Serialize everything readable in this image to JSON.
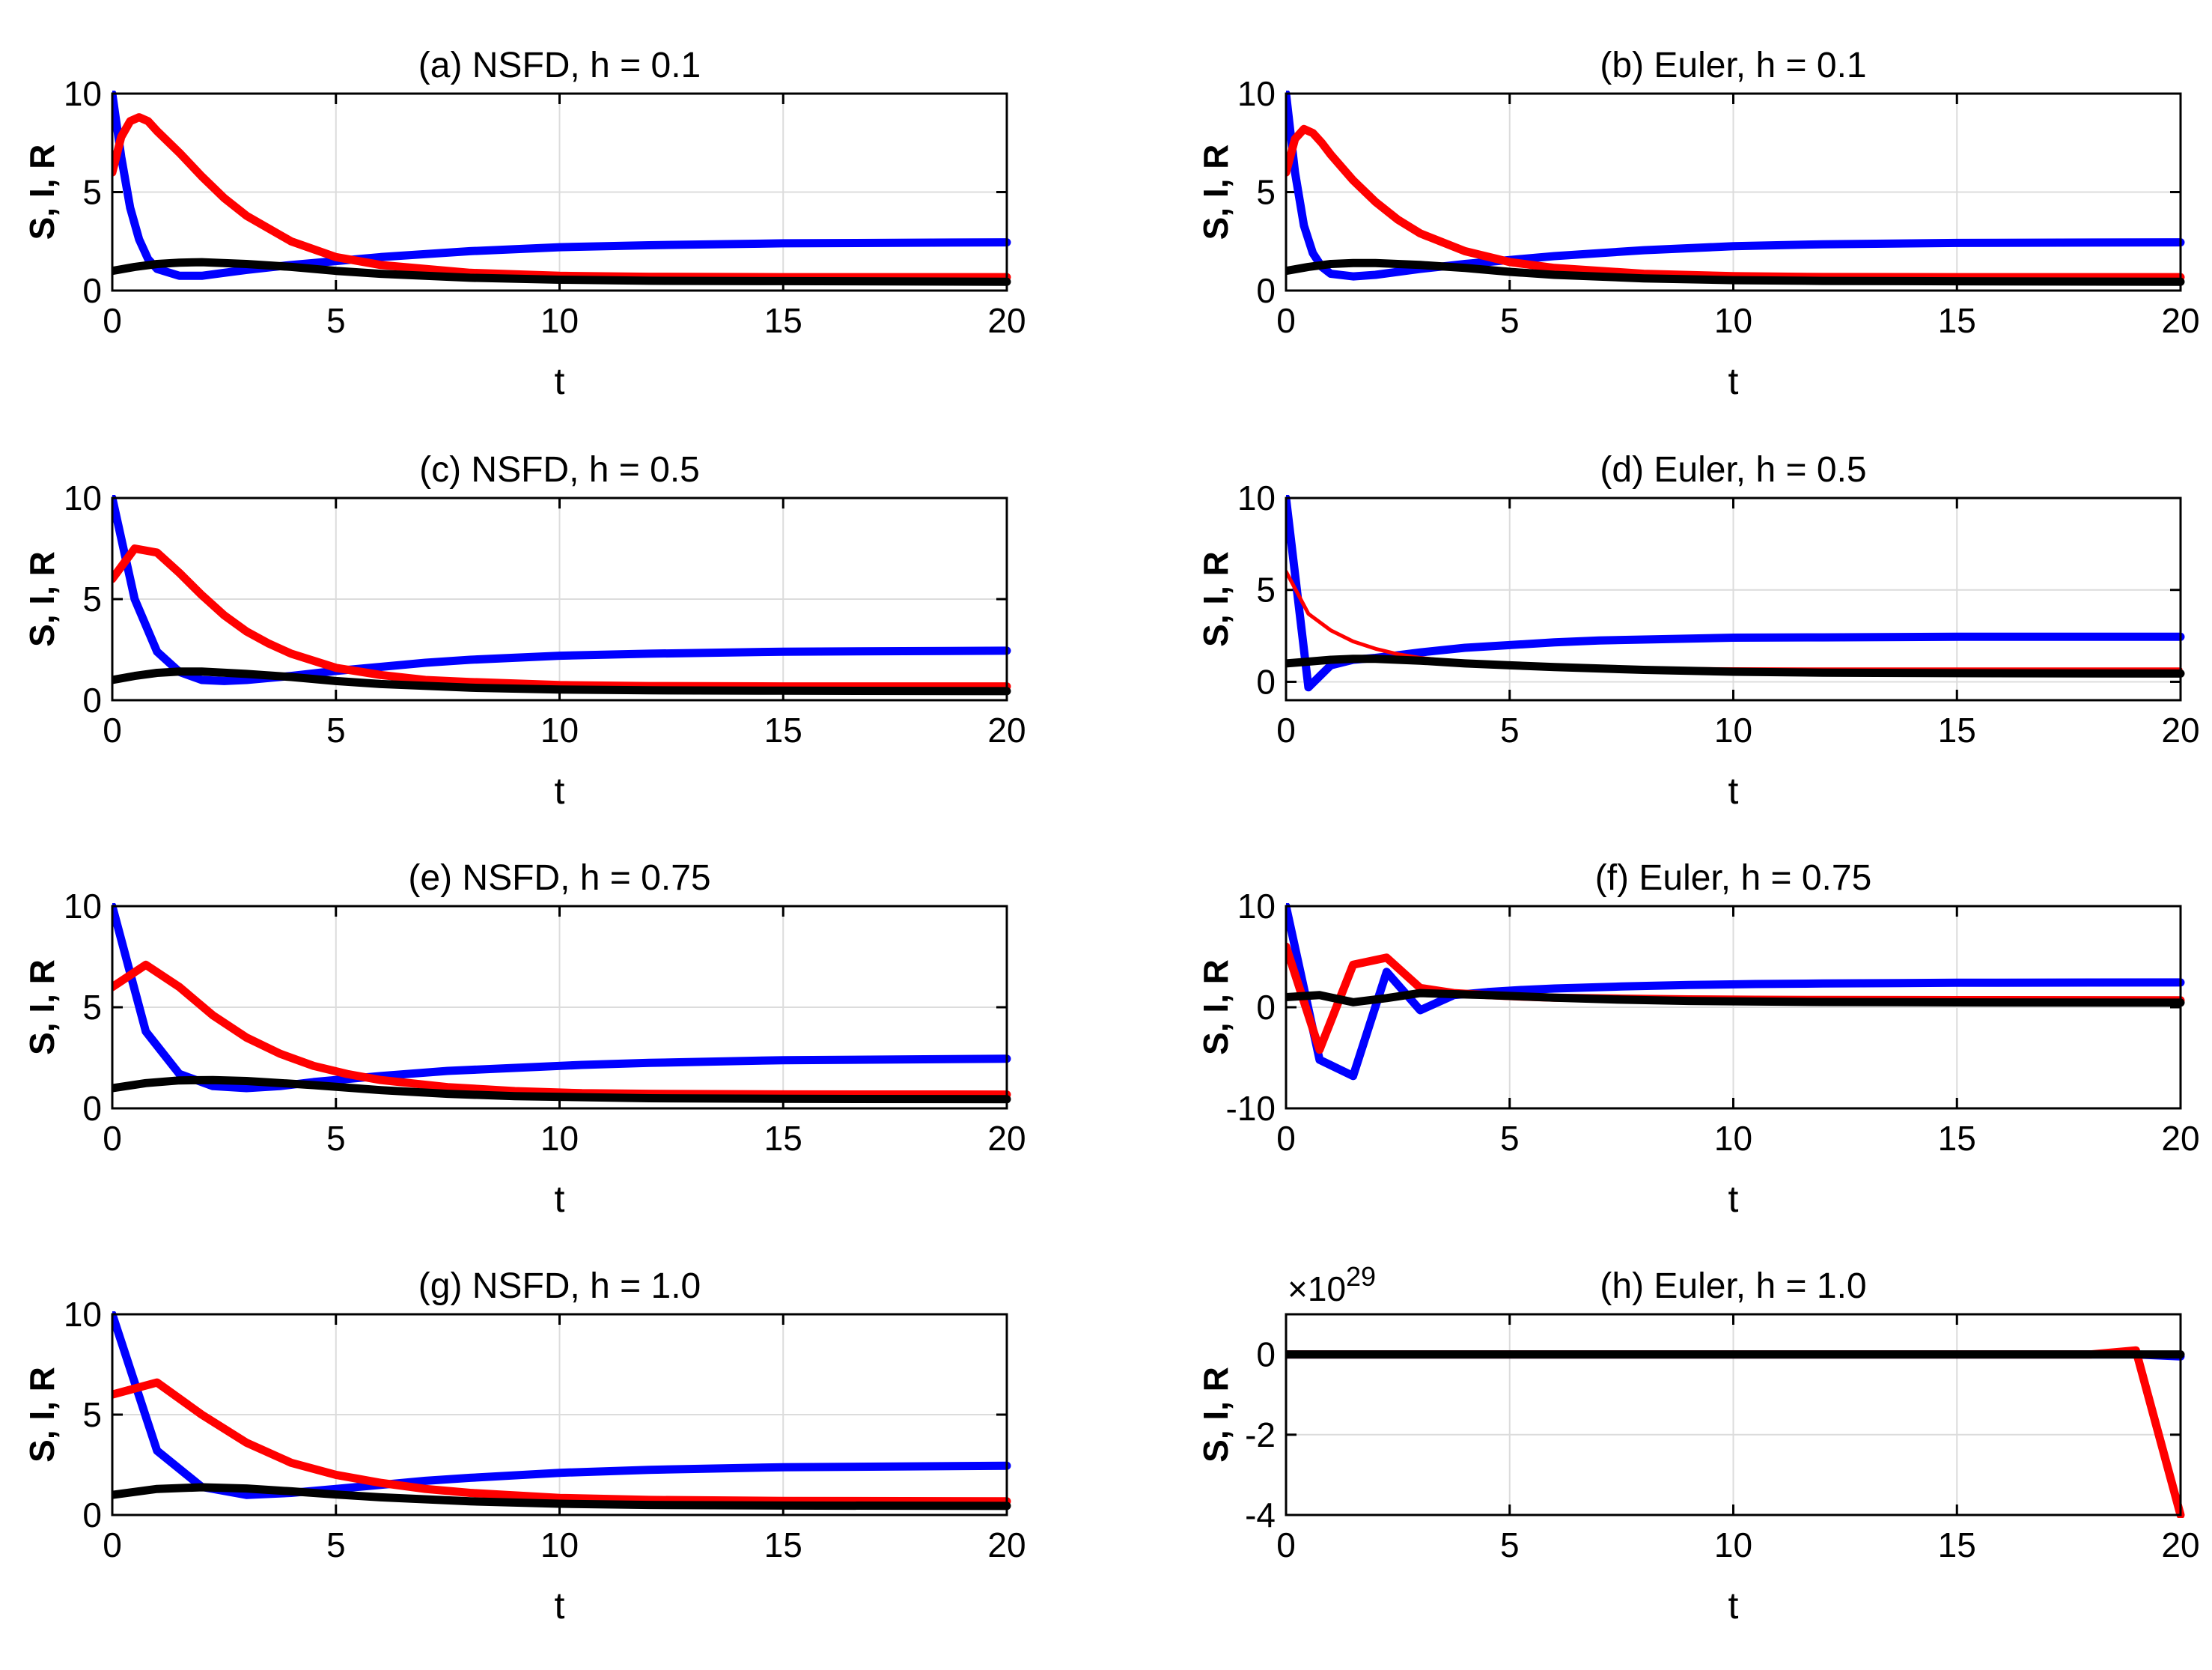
{
  "colors": {
    "S": "#0000ff",
    "I": "#ff0000",
    "R": "#000000"
  },
  "chart_data": [
    {
      "type": "line",
      "title": "(a) NSFD, h = 0.1",
      "xlabel": "t",
      "ylabel": "S, I, R",
      "xlim": [
        0,
        20
      ],
      "ylim": [
        0,
        10
      ],
      "xticks": [
        "0",
        "5",
        "10",
        "15",
        "20"
      ],
      "yticks": [
        "0",
        "5",
        "10"
      ],
      "ytick_values": [
        0,
        5,
        10
      ],
      "exponent": "",
      "series": [
        {
          "name": "S",
          "color": "#0000ff",
          "x": [
            0,
            0.2,
            0.4,
            0.6,
            0.8,
            1,
            1.5,
            2,
            2.5,
            3,
            4,
            5,
            6,
            8,
            10,
            12,
            15,
            20
          ],
          "y": [
            10,
            6.8,
            4.2,
            2.6,
            1.6,
            1.1,
            0.75,
            0.75,
            0.9,
            1.05,
            1.3,
            1.5,
            1.7,
            2.0,
            2.2,
            2.3,
            2.4,
            2.45
          ]
        },
        {
          "name": "I",
          "color": "#ff0000",
          "x": [
            0,
            0.2,
            0.4,
            0.6,
            0.8,
            1,
            1.5,
            2,
            2.5,
            3,
            4,
            5,
            6,
            8,
            10,
            12,
            15,
            20
          ],
          "y": [
            6,
            7.8,
            8.6,
            8.8,
            8.6,
            8.1,
            7.0,
            5.8,
            4.7,
            3.8,
            2.5,
            1.7,
            1.3,
            0.9,
            0.75,
            0.7,
            0.68,
            0.68
          ]
        },
        {
          "name": "R",
          "color": "#000000",
          "x": [
            0,
            0.5,
            1,
            1.5,
            2,
            3,
            4,
            5,
            6,
            8,
            10,
            12,
            15,
            20
          ],
          "y": [
            1,
            1.2,
            1.35,
            1.42,
            1.44,
            1.35,
            1.2,
            1.0,
            0.85,
            0.65,
            0.55,
            0.5,
            0.48,
            0.45
          ]
        }
      ]
    },
    {
      "type": "line",
      "title": "(b) Euler, h = 0.1",
      "xlabel": "t",
      "ylabel": "S, I, R",
      "xlim": [
        0,
        20
      ],
      "ylim": [
        0,
        10
      ],
      "xticks": [
        "0",
        "5",
        "10",
        "15",
        "20"
      ],
      "yticks": [
        "0",
        "5",
        "10"
      ],
      "ytick_values": [
        0,
        5,
        10
      ],
      "exponent": "",
      "series": [
        {
          "name": "S",
          "color": "#0000ff",
          "x": [
            0,
            0.2,
            0.4,
            0.6,
            0.8,
            1,
            1.5,
            2,
            2.5,
            3,
            4,
            5,
            6,
            8,
            10,
            12,
            15,
            20
          ],
          "y": [
            10,
            6.0,
            3.3,
            1.9,
            1.2,
            0.85,
            0.72,
            0.8,
            0.95,
            1.1,
            1.35,
            1.55,
            1.75,
            2.05,
            2.25,
            2.35,
            2.42,
            2.45
          ]
        },
        {
          "name": "I",
          "color": "#ff0000",
          "x": [
            0,
            0.2,
            0.4,
            0.6,
            0.8,
            1,
            1.5,
            2,
            2.5,
            3,
            4,
            5,
            6,
            8,
            10,
            12,
            15,
            20
          ],
          "y": [
            6,
            7.7,
            8.2,
            8.0,
            7.5,
            6.9,
            5.6,
            4.5,
            3.6,
            2.9,
            2.0,
            1.45,
            1.15,
            0.85,
            0.73,
            0.69,
            0.68,
            0.68
          ]
        },
        {
          "name": "R",
          "color": "#000000",
          "x": [
            0,
            0.5,
            1,
            1.5,
            2,
            3,
            4,
            5,
            6,
            8,
            10,
            12,
            15,
            20
          ],
          "y": [
            1,
            1.2,
            1.35,
            1.4,
            1.4,
            1.3,
            1.15,
            0.95,
            0.8,
            0.62,
            0.53,
            0.49,
            0.47,
            0.45
          ]
        }
      ]
    },
    {
      "type": "line",
      "title": "(c) NSFD, h = 0.5",
      "xlabel": "t",
      "ylabel": "S, I, R",
      "xlim": [
        0,
        20
      ],
      "ylim": [
        0,
        10
      ],
      "xticks": [
        "0",
        "5",
        "10",
        "15",
        "20"
      ],
      "yticks": [
        "0",
        "5",
        "10"
      ],
      "ytick_values": [
        0,
        5,
        10
      ],
      "exponent": "",
      "series": [
        {
          "name": "S",
          "color": "#0000ff",
          "x": [
            0,
            0.5,
            1,
            1.5,
            2,
            2.5,
            3,
            4,
            5,
            6,
            7,
            8,
            10,
            12,
            15,
            20
          ],
          "y": [
            10,
            5.0,
            2.4,
            1.4,
            1.0,
            0.95,
            1.0,
            1.2,
            1.45,
            1.65,
            1.85,
            2.0,
            2.2,
            2.3,
            2.4,
            2.45
          ]
        },
        {
          "name": "I",
          "color": "#ff0000",
          "x": [
            0,
            0.5,
            1,
            1.5,
            2,
            2.5,
            3,
            3.5,
            4,
            5,
            6,
            7,
            8,
            10,
            12,
            15,
            20
          ],
          "y": [
            6,
            7.5,
            7.3,
            6.3,
            5.2,
            4.2,
            3.4,
            2.8,
            2.3,
            1.6,
            1.25,
            1.0,
            0.9,
            0.75,
            0.7,
            0.68,
            0.68
          ]
        },
        {
          "name": "R",
          "color": "#000000",
          "x": [
            0,
            0.5,
            1,
            1.5,
            2,
            3,
            4,
            5,
            6,
            8,
            10,
            12,
            15,
            20
          ],
          "y": [
            1,
            1.2,
            1.35,
            1.42,
            1.42,
            1.3,
            1.15,
            0.95,
            0.8,
            0.62,
            0.53,
            0.49,
            0.47,
            0.45
          ]
        }
      ]
    },
    {
      "type": "line",
      "title": "(d) Euler, h = 0.5",
      "xlabel": "t",
      "ylabel": "S, I, R",
      "xlim": [
        0,
        20
      ],
      "ylim": [
        -1,
        10
      ],
      "xticks": [
        "0",
        "5",
        "10",
        "15",
        "20"
      ],
      "yticks": [
        "0",
        "5",
        "10"
      ],
      "ytick_values": [
        0,
        5,
        10
      ],
      "exponent": "",
      "series": [
        {
          "name": "S",
          "color": "#0000ff",
          "x": [
            0,
            0.5,
            1,
            1.5,
            2,
            2.5,
            3,
            4,
            5,
            6,
            7,
            8,
            10,
            12,
            15,
            20
          ],
          "y": [
            10,
            -0.3,
            0.9,
            1.2,
            1.3,
            1.45,
            1.6,
            1.85,
            2.0,
            2.15,
            2.25,
            2.3,
            2.4,
            2.42,
            2.45,
            2.45
          ]
        },
        {
          "name": "I",
          "color": "#ff0000",
          "x": [
            0,
            0.5,
            1,
            1.5,
            2,
            2.5,
            3,
            4,
            5,
            6,
            8,
            10,
            12,
            15,
            20
          ],
          "y": [
            6,
            3.7,
            2.8,
            2.2,
            1.8,
            1.5,
            1.3,
            1.05,
            0.9,
            0.8,
            0.72,
            0.69,
            0.68,
            0.68,
            0.68
          ]
        },
        {
          "name": "R",
          "color": "#000000",
          "x": [
            0,
            0.5,
            1,
            1.5,
            2,
            3,
            4,
            5,
            6,
            8,
            10,
            12,
            15,
            20
          ],
          "y": [
            1,
            1.1,
            1.2,
            1.25,
            1.25,
            1.15,
            1.0,
            0.9,
            0.8,
            0.65,
            0.55,
            0.5,
            0.47,
            0.45
          ]
        }
      ]
    },
    {
      "type": "line",
      "title": "(e) NSFD, h = 0.75",
      "xlabel": "t",
      "ylabel": "S, I, R",
      "xlim": [
        0,
        20
      ],
      "ylim": [
        0,
        10
      ],
      "xticks": [
        "0",
        "5",
        "10",
        "15",
        "20"
      ],
      "yticks": [
        "0",
        "5",
        "10"
      ],
      "ytick_values": [
        0,
        5,
        10
      ],
      "exponent": "",
      "series": [
        {
          "name": "S",
          "color": "#0000ff",
          "x": [
            0,
            0.75,
            1.5,
            2.25,
            3,
            3.75,
            4.5,
            5.25,
            6,
            7.5,
            9,
            10.5,
            12,
            15,
            20
          ],
          "y": [
            10,
            3.8,
            1.7,
            1.1,
            1.0,
            1.1,
            1.3,
            1.45,
            1.6,
            1.85,
            2.0,
            2.15,
            2.25,
            2.38,
            2.45
          ]
        },
        {
          "name": "I",
          "color": "#ff0000",
          "x": [
            0,
            0.75,
            1.5,
            2.25,
            3,
            3.75,
            4.5,
            5.25,
            6,
            7.5,
            9,
            10.5,
            12,
            15,
            20
          ],
          "y": [
            6,
            7.1,
            6.0,
            4.6,
            3.5,
            2.7,
            2.1,
            1.7,
            1.4,
            1.05,
            0.85,
            0.75,
            0.72,
            0.69,
            0.68
          ]
        },
        {
          "name": "R",
          "color": "#000000",
          "x": [
            0,
            0.75,
            1.5,
            2.25,
            3,
            4.5,
            6,
            7.5,
            9,
            12,
            15,
            20
          ],
          "y": [
            1,
            1.25,
            1.38,
            1.4,
            1.35,
            1.15,
            0.9,
            0.72,
            0.6,
            0.5,
            0.47,
            0.45
          ]
        }
      ]
    },
    {
      "type": "line",
      "title": "(f) Euler, h = 0.75",
      "xlabel": "t",
      "ylabel": "S, I, R",
      "xlim": [
        0,
        20
      ],
      "ylim": [
        -10,
        10
      ],
      "xticks": [
        "0",
        "5",
        "10",
        "15",
        "20"
      ],
      "yticks": [
        "-10",
        "0",
        "10"
      ],
      "ytick_values": [
        -10,
        0,
        10
      ],
      "exponent": "",
      "series": [
        {
          "name": "S",
          "color": "#0000ff",
          "x": [
            0,
            0.75,
            1.5,
            2.25,
            3,
            3.75,
            4.5,
            5.25,
            6,
            7.5,
            9,
            10.5,
            12,
            15,
            20
          ],
          "y": [
            10,
            -5.2,
            -6.8,
            3.5,
            -0.3,
            1.2,
            1.5,
            1.7,
            1.85,
            2.05,
            2.2,
            2.3,
            2.35,
            2.42,
            2.45
          ]
        },
        {
          "name": "I",
          "color": "#ff0000",
          "x": [
            0,
            0.75,
            1.5,
            2.25,
            3,
            3.75,
            4.5,
            5.25,
            6,
            7.5,
            9,
            10.5,
            12,
            15,
            20
          ],
          "y": [
            6,
            -4.2,
            4.2,
            4.9,
            1.9,
            1.4,
            1.2,
            1.05,
            0.95,
            0.85,
            0.78,
            0.74,
            0.72,
            0.7,
            0.68
          ]
        },
        {
          "name": "R",
          "color": "#000000",
          "x": [
            0,
            0.75,
            1.5,
            2.25,
            3,
            3.75,
            4.5,
            6,
            7.5,
            9,
            12,
            15,
            20
          ],
          "y": [
            1,
            1.2,
            0.5,
            0.9,
            1.4,
            1.3,
            1.2,
            0.95,
            0.75,
            0.62,
            0.52,
            0.48,
            0.45
          ]
        }
      ]
    },
    {
      "type": "line",
      "title": "(g) NSFD, h = 1.0",
      "xlabel": "t",
      "ylabel": "S, I, R",
      "xlim": [
        0,
        20
      ],
      "ylim": [
        0,
        10
      ],
      "xticks": [
        "0",
        "5",
        "10",
        "15",
        "20"
      ],
      "yticks": [
        "0",
        "5",
        "10"
      ],
      "ytick_values": [
        0,
        5,
        10
      ],
      "exponent": "",
      "series": [
        {
          "name": "S",
          "color": "#0000ff",
          "x": [
            0,
            1,
            2,
            3,
            4,
            5,
            6,
            7,
            8,
            10,
            12,
            15,
            20
          ],
          "y": [
            10,
            3.2,
            1.4,
            1.0,
            1.1,
            1.3,
            1.5,
            1.7,
            1.85,
            2.1,
            2.25,
            2.38,
            2.45
          ]
        },
        {
          "name": "I",
          "color": "#ff0000",
          "x": [
            0,
            1,
            2,
            3,
            4,
            5,
            6,
            7,
            8,
            10,
            12,
            15,
            20
          ],
          "y": [
            6,
            6.6,
            5.0,
            3.6,
            2.6,
            2.0,
            1.6,
            1.3,
            1.1,
            0.85,
            0.75,
            0.7,
            0.68
          ]
        },
        {
          "name": "R",
          "color": "#000000",
          "x": [
            0,
            1,
            2,
            3,
            4,
            5,
            6,
            8,
            10,
            12,
            15,
            20
          ],
          "y": [
            1,
            1.3,
            1.38,
            1.32,
            1.18,
            1.02,
            0.88,
            0.68,
            0.56,
            0.5,
            0.47,
            0.45
          ]
        }
      ]
    },
    {
      "type": "line",
      "title": "(h) Euler, h = 1.0",
      "xlabel": "t",
      "ylabel": "S, I, R",
      "xlim": [
        0,
        20
      ],
      "ylim": [
        -4,
        1
      ],
      "xticks": [
        "0",
        "5",
        "10",
        "15",
        "20"
      ],
      "yticks": [
        "-4",
        "-2",
        "0"
      ],
      "ytick_values": [
        -4,
        -2,
        0
      ],
      "exponent": "×10^29",
      "exponent_base": "×10",
      "exponent_power": "29",
      "series": [
        {
          "name": "S",
          "color": "#0000ff",
          "x": [
            0,
            5,
            10,
            15,
            18,
            19,
            20
          ],
          "y": [
            0,
            0,
            0,
            0,
            0,
            0,
            -0.05
          ]
        },
        {
          "name": "I",
          "color": "#ff0000",
          "x": [
            0,
            5,
            10,
            15,
            18,
            19,
            20
          ],
          "y": [
            0,
            0,
            0,
            0,
            0,
            0.1,
            -4
          ]
        },
        {
          "name": "R",
          "color": "#000000",
          "x": [
            0,
            5,
            10,
            15,
            18,
            19,
            20
          ],
          "y": [
            0,
            0,
            0,
            0,
            0,
            0,
            0
          ]
        }
      ]
    }
  ]
}
